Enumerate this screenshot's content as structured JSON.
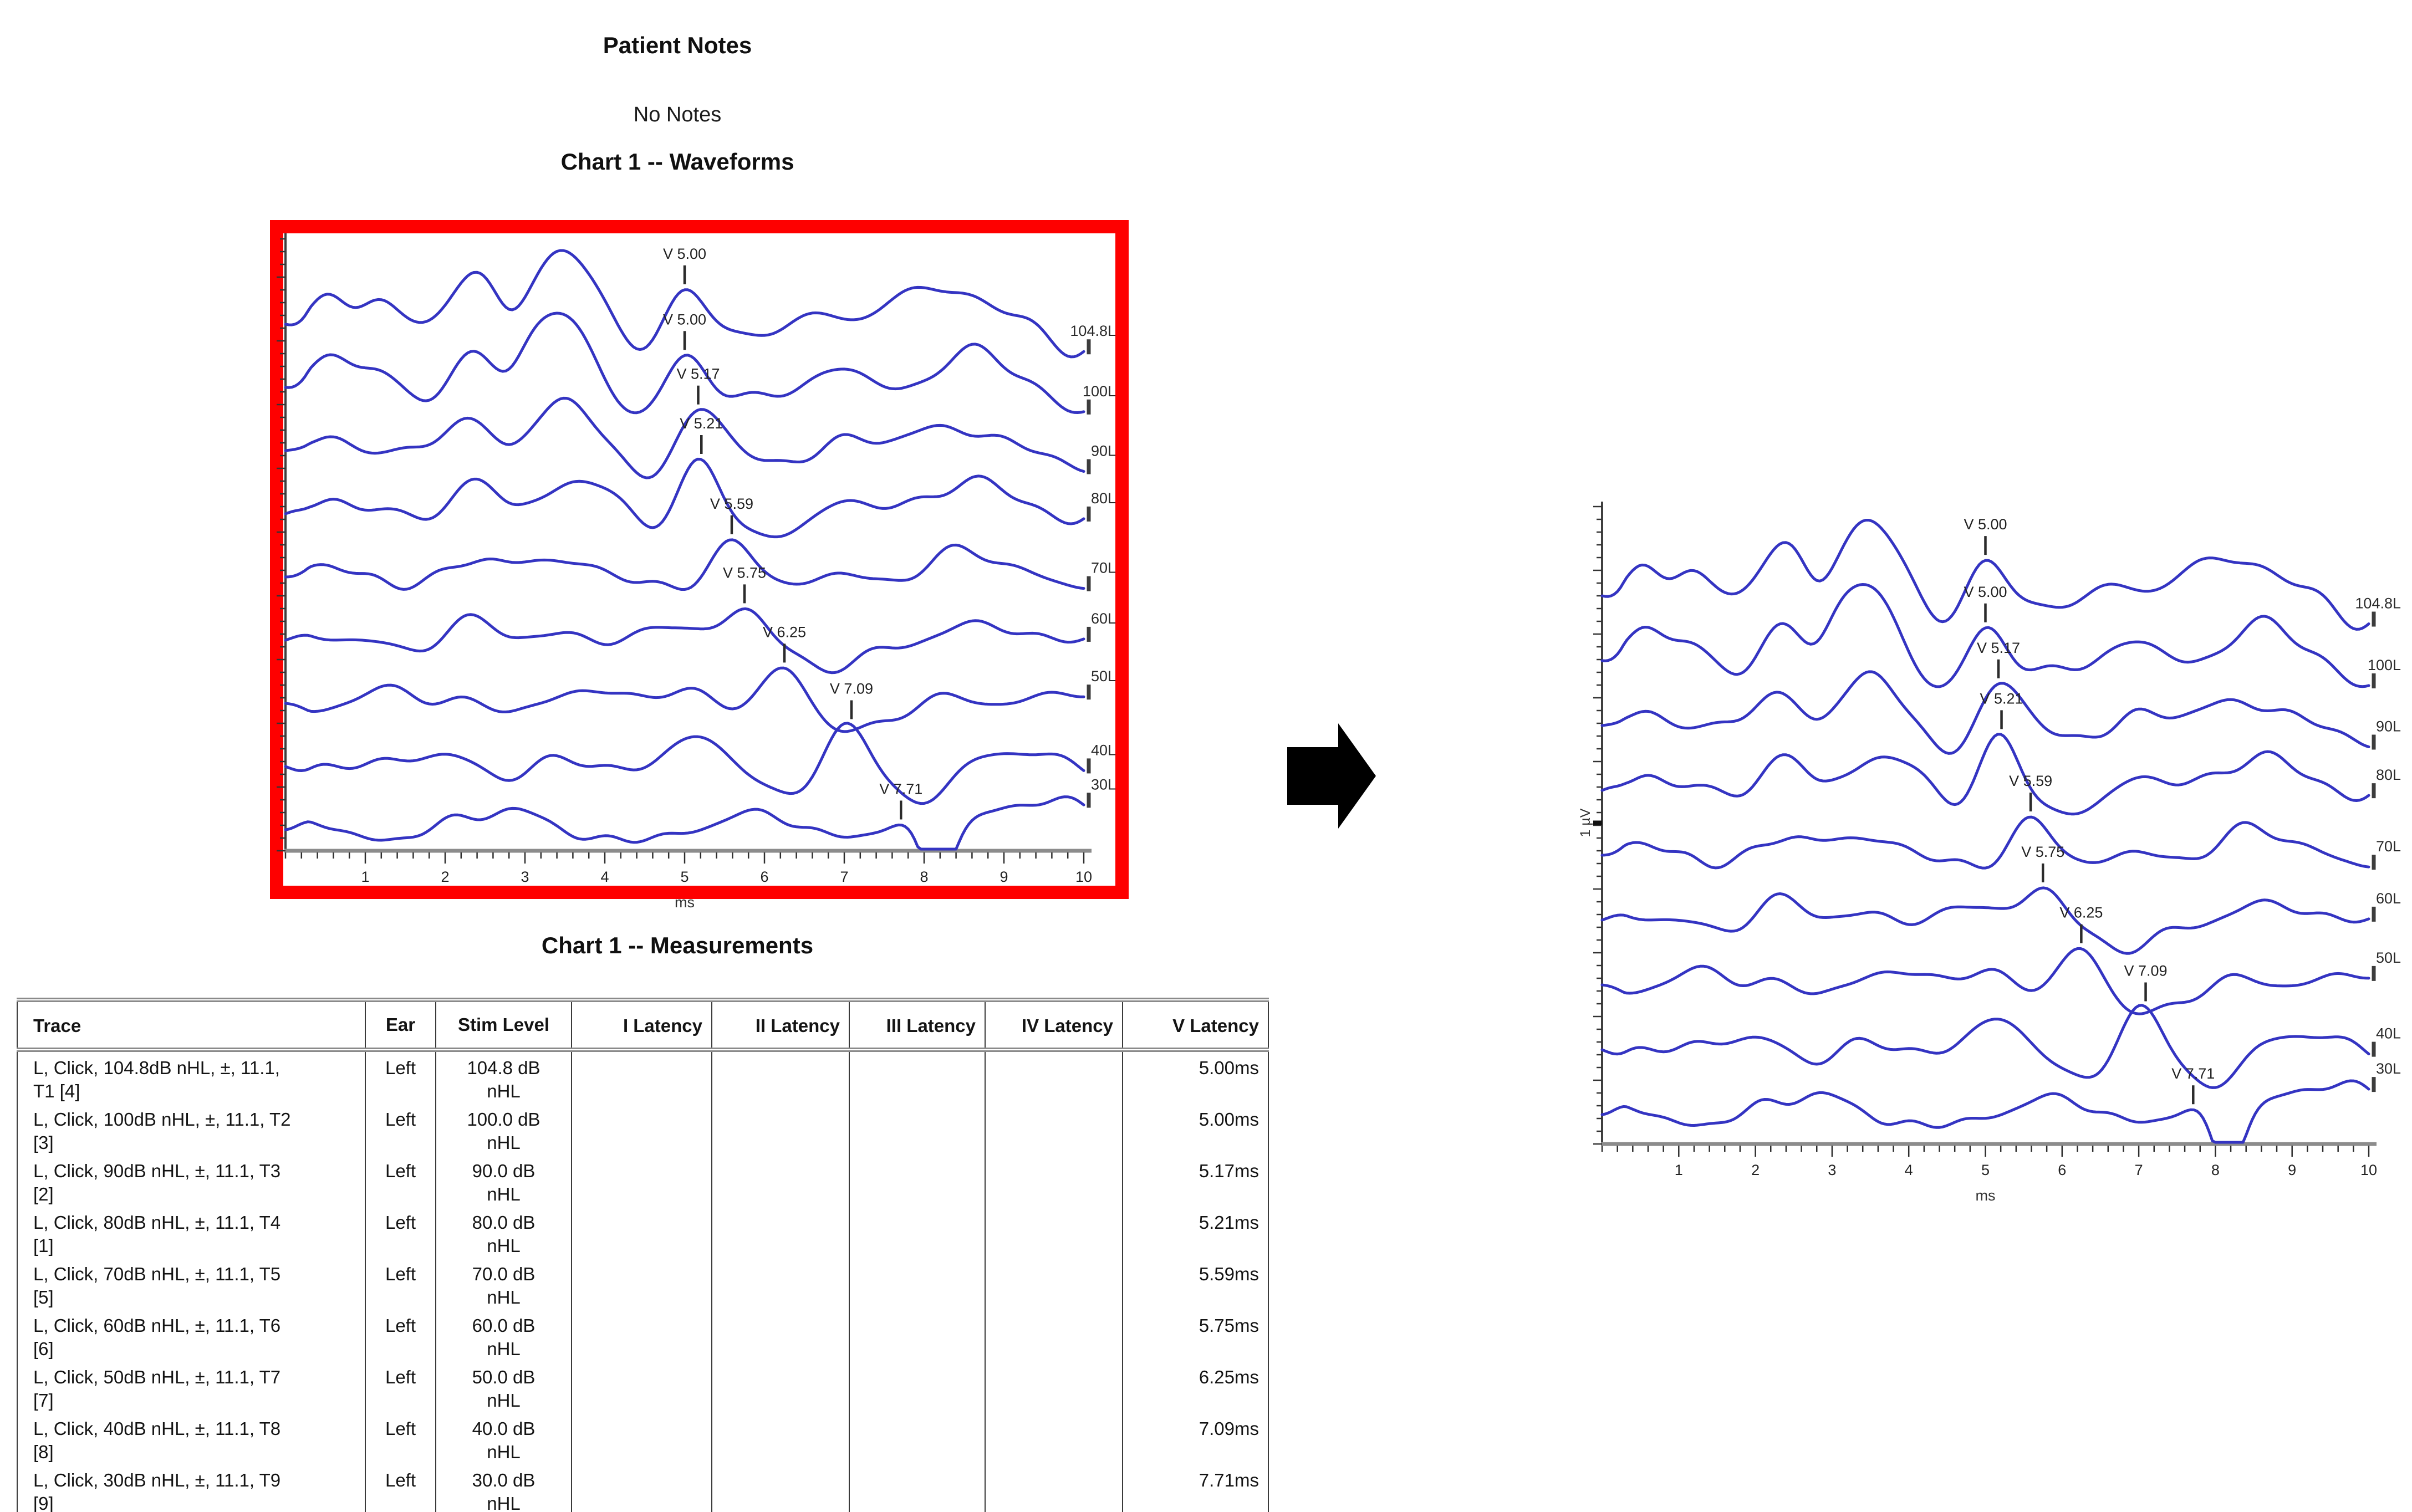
{
  "page": {
    "patient_notes_title": "Patient Notes",
    "no_notes": "No Notes",
    "waveforms_title": "Chart 1 -- Waveforms",
    "measurements_title": "Chart 1 -- Measurements"
  },
  "annotations": {
    "highlight_box_color": "#fe0000",
    "arrow_color": "#000000"
  },
  "chart_data": {
    "type": "line",
    "title": "Chart 1 -- Waveforms",
    "xlabel": "ms",
    "ylabel": "1 µV",
    "x_range": [
      0,
      10
    ],
    "x_ticks": [
      1,
      2,
      3,
      4,
      5,
      6,
      7,
      8,
      9,
      10
    ],
    "grid": false,
    "legend_position": "right",
    "line_color": "#3434c2",
    "traces": [
      {
        "label": "104.8L",
        "stim_level_db": 104.8,
        "v_latency_ms": 5.0,
        "v_marker": "V 5.00"
      },
      {
        "label": "100L",
        "stim_level_db": 100.0,
        "v_latency_ms": 5.0,
        "v_marker": "V 5.00"
      },
      {
        "label": "90L",
        "stim_level_db": 90.0,
        "v_latency_ms": 5.17,
        "v_marker": "V 5.17"
      },
      {
        "label": "80L",
        "stim_level_db": 80.0,
        "v_latency_ms": 5.21,
        "v_marker": "V 5.21"
      },
      {
        "label": "70L",
        "stim_level_db": 70.0,
        "v_latency_ms": 5.59,
        "v_marker": "V 5.59"
      },
      {
        "label": "60L",
        "stim_level_db": 60.0,
        "v_latency_ms": 5.75,
        "v_marker": "V 5.75"
      },
      {
        "label": "50L",
        "stim_level_db": 50.0,
        "v_latency_ms": 6.25,
        "v_marker": "V 6.25"
      },
      {
        "label": "40L",
        "stim_level_db": 40.0,
        "v_latency_ms": 7.09,
        "v_marker": "V 7.09"
      },
      {
        "label": "30L",
        "stim_level_db": 30.0,
        "v_latency_ms": 7.71,
        "v_marker": "V 7.71"
      }
    ]
  },
  "measurements_table": {
    "columns": [
      "Trace",
      "Ear",
      "Stim Level",
      "I Latency",
      "II Latency",
      "III Latency",
      "IV Latency",
      "V Latency"
    ],
    "rows": [
      {
        "trace_line1": "L, Click, 104.8dB nHL, ±, 11.1,",
        "trace_line2": "T1  [4]",
        "ear": "Left",
        "stim_line1": "104.8 dB",
        "stim_line2": "nHL",
        "i_latency": "",
        "ii_latency": "",
        "iii_latency": "",
        "iv_latency": "",
        "v_latency": "5.00ms"
      },
      {
        "trace_line1": "L, Click, 100dB nHL, ±, 11.1, T2",
        "trace_line2": "[3]",
        "ear": "Left",
        "stim_line1": "100.0 dB",
        "stim_line2": "nHL",
        "i_latency": "",
        "ii_latency": "",
        "iii_latency": "",
        "iv_latency": "",
        "v_latency": "5.00ms"
      },
      {
        "trace_line1": "L, Click, 90dB nHL, ±, 11.1, T3",
        "trace_line2": "[2]",
        "ear": "Left",
        "stim_line1": "90.0 dB",
        "stim_line2": "nHL",
        "i_latency": "",
        "ii_latency": "",
        "iii_latency": "",
        "iv_latency": "",
        "v_latency": "5.17ms"
      },
      {
        "trace_line1": "L, Click, 80dB nHL, ±, 11.1, T4",
        "trace_line2": "[1]",
        "ear": "Left",
        "stim_line1": "80.0 dB",
        "stim_line2": "nHL",
        "i_latency": "",
        "ii_latency": "",
        "iii_latency": "",
        "iv_latency": "",
        "v_latency": "5.21ms"
      },
      {
        "trace_line1": "L, Click, 70dB nHL, ±, 11.1, T5",
        "trace_line2": "[5]",
        "ear": "Left",
        "stim_line1": "70.0 dB",
        "stim_line2": "nHL",
        "i_latency": "",
        "ii_latency": "",
        "iii_latency": "",
        "iv_latency": "",
        "v_latency": "5.59ms"
      },
      {
        "trace_line1": "L, Click, 60dB nHL, ±, 11.1, T6",
        "trace_line2": "[6]",
        "ear": "Left",
        "stim_line1": "60.0 dB",
        "stim_line2": "nHL",
        "i_latency": "",
        "ii_latency": "",
        "iii_latency": "",
        "iv_latency": "",
        "v_latency": "5.75ms"
      },
      {
        "trace_line1": "L, Click, 50dB nHL, ±, 11.1, T7",
        "trace_line2": "[7]",
        "ear": "Left",
        "stim_line1": "50.0 dB",
        "stim_line2": "nHL",
        "i_latency": "",
        "ii_latency": "",
        "iii_latency": "",
        "iv_latency": "",
        "v_latency": "6.25ms"
      },
      {
        "trace_line1": "L, Click, 40dB nHL, ±, 11.1, T8",
        "trace_line2": "[8]",
        "ear": "Left",
        "stim_line1": "40.0 dB",
        "stim_line2": "nHL",
        "i_latency": "",
        "ii_latency": "",
        "iii_latency": "",
        "iv_latency": "",
        "v_latency": "7.09ms"
      },
      {
        "trace_line1": "L, Click, 30dB nHL, ±, 11.1, T9",
        "trace_line2": "[9]",
        "ear": "Left",
        "stim_line1": "30.0 dB",
        "stim_line2": "nHL",
        "i_latency": "",
        "ii_latency": "",
        "iii_latency": "",
        "iv_latency": "",
        "v_latency": "7.71ms"
      }
    ]
  }
}
